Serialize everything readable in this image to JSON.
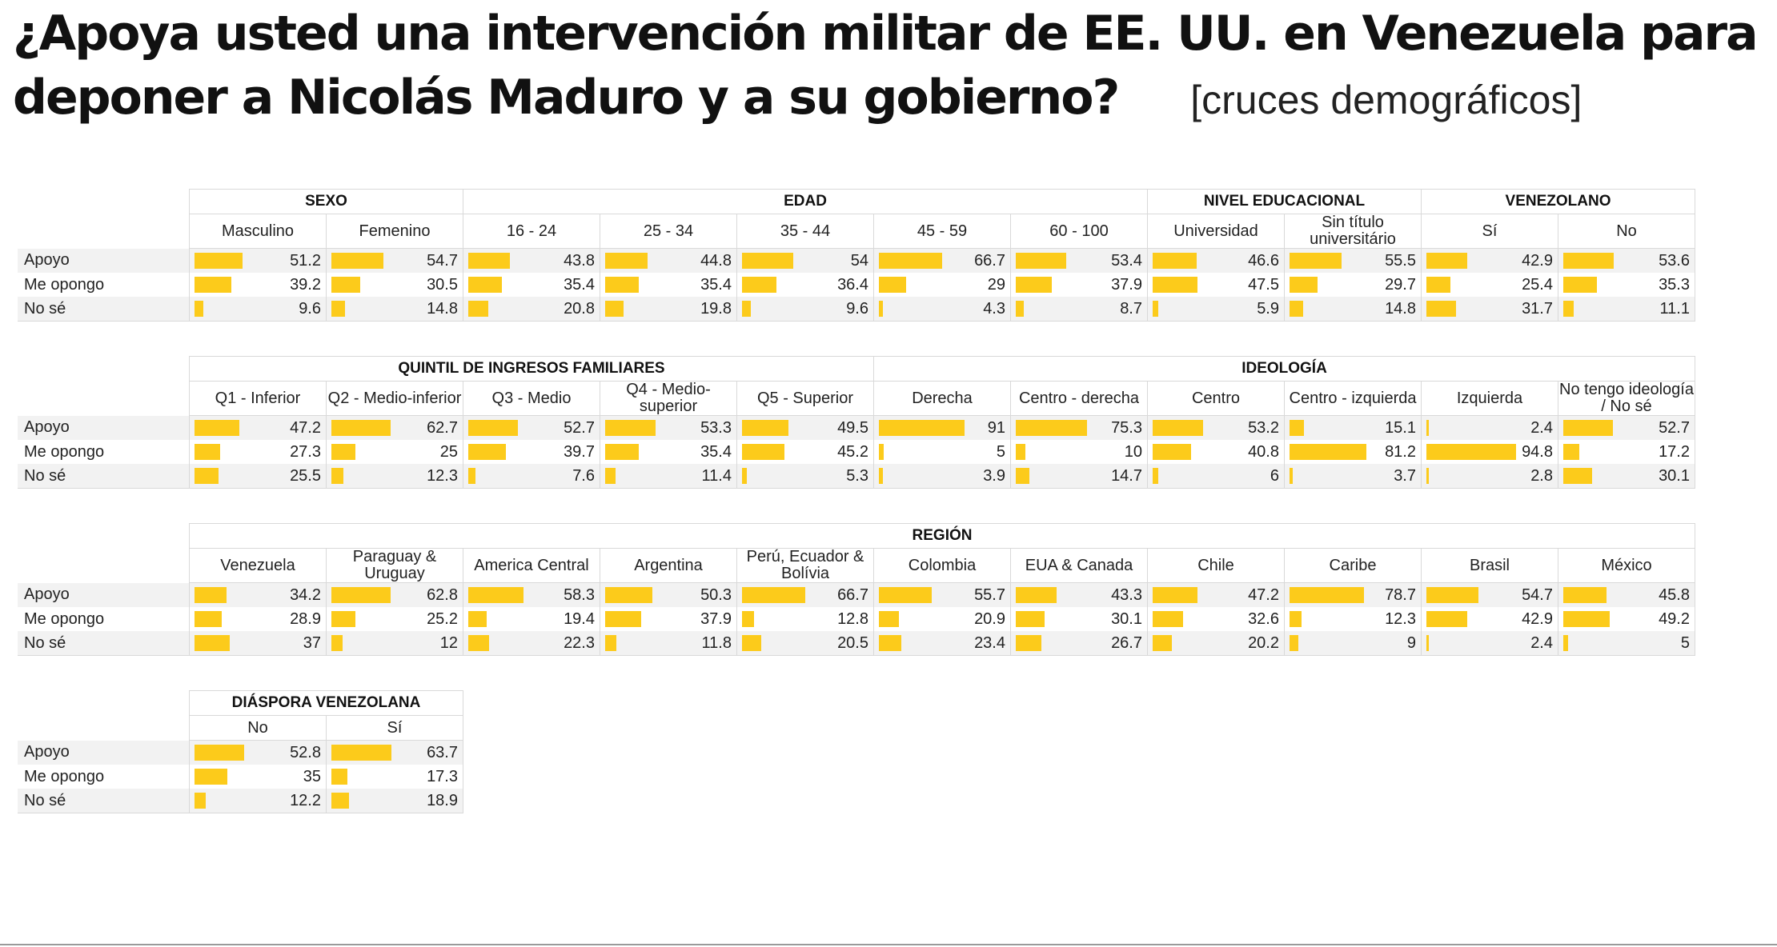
{
  "title": "¿Apoya usted una intervención militar de EE. UU. en Venezuela para deponer a Nicolás Maduro y a su gobierno?",
  "subtitle": "[cruces demográficos]",
  "colors": {
    "bar": "#fccb1b",
    "row_shade": "#f2f2f2",
    "border": "#d9d9d9"
  },
  "chart_data": {
    "type": "table",
    "scale_max": 100,
    "row_labels": [
      "Apoyo",
      "Me opongo",
      "No sé"
    ],
    "blocks": [
      {
        "groups": [
          {
            "name": "SEXO",
            "columns": [
              {
                "label": "Masculino",
                "values": [
                  51.2,
                  39.2,
                  9.6
                ]
              },
              {
                "label": "Femenino",
                "values": [
                  54.7,
                  30.5,
                  14.8
                ]
              }
            ]
          },
          {
            "name": "EDAD",
            "columns": [
              {
                "label": "16 - 24",
                "values": [
                  43.8,
                  35.4,
                  20.8
                ]
              },
              {
                "label": "25 - 34",
                "values": [
                  44.8,
                  35.4,
                  19.8
                ]
              },
              {
                "label": "35 - 44",
                "values": [
                  54,
                  36.4,
                  9.6
                ]
              },
              {
                "label": "45 - 59",
                "values": [
                  66.7,
                  29,
                  4.3
                ]
              },
              {
                "label": "60 - 100",
                "values": [
                  53.4,
                  37.9,
                  8.7
                ]
              }
            ]
          },
          {
            "name": "NIVEL EDUCACIONAL",
            "columns": [
              {
                "label": "Universidad",
                "values": [
                  46.6,
                  47.5,
                  5.9
                ]
              },
              {
                "label": "Sin título universitário",
                "values": [
                  55.5,
                  29.7,
                  14.8
                ]
              }
            ]
          },
          {
            "name": "VENEZOLANO",
            "columns": [
              {
                "label": "Sí",
                "values": [
                  42.9,
                  25.4,
                  31.7
                ]
              },
              {
                "label": "No",
                "values": [
                  53.6,
                  35.3,
                  11.1
                ]
              }
            ]
          }
        ]
      },
      {
        "groups": [
          {
            "name": "QUINTIL DE INGRESOS FAMILIARES",
            "columns": [
              {
                "label": "Q1 - Inferior",
                "values": [
                  47.2,
                  27.3,
                  25.5
                ]
              },
              {
                "label": "Q2 - Medio-inferior",
                "values": [
                  62.7,
                  25,
                  12.3
                ]
              },
              {
                "label": "Q3 - Medio",
                "values": [
                  52.7,
                  39.7,
                  7.6
                ]
              },
              {
                "label": "Q4 - Medio-superior",
                "values": [
                  53.3,
                  35.4,
                  11.4
                ]
              },
              {
                "label": "Q5 - Superior",
                "values": [
                  49.5,
                  45.2,
                  5.3
                ]
              }
            ]
          },
          {
            "name": "IDEOLOGÍA",
            "columns": [
              {
                "label": "Derecha",
                "values": [
                  91,
                  5,
                  3.9
                ]
              },
              {
                "label": "Centro - derecha",
                "values": [
                  75.3,
                  10,
                  14.7
                ]
              },
              {
                "label": "Centro",
                "values": [
                  53.2,
                  40.8,
                  6
                ]
              },
              {
                "label": "Centro - izquierda",
                "values": [
                  15.1,
                  81.2,
                  3.7
                ]
              },
              {
                "label": "Izquierda",
                "values": [
                  2.4,
                  94.8,
                  2.8
                ]
              },
              {
                "label": "No tengo ideología / No sé",
                "values": [
                  52.7,
                  17.2,
                  30.1
                ]
              }
            ]
          }
        ]
      },
      {
        "groups": [
          {
            "name": "REGIÓN",
            "columns": [
              {
                "label": "Venezuela",
                "values": [
                  34.2,
                  28.9,
                  37
                ]
              },
              {
                "label": "Paraguay & Uruguay",
                "values": [
                  62.8,
                  25.2,
                  12
                ]
              },
              {
                "label": "America Central",
                "values": [
                  58.3,
                  19.4,
                  22.3
                ]
              },
              {
                "label": "Argentina",
                "values": [
                  50.3,
                  37.9,
                  11.8
                ]
              },
              {
                "label": "Perú, Ecuador & Bolívia",
                "values": [
                  66.7,
                  12.8,
                  20.5
                ]
              },
              {
                "label": "Colombia",
                "values": [
                  55.7,
                  20.9,
                  23.4
                ]
              },
              {
                "label": "EUA & Canada",
                "values": [
                  43.3,
                  30.1,
                  26.7
                ]
              },
              {
                "label": "Chile",
                "values": [
                  47.2,
                  32.6,
                  20.2
                ]
              },
              {
                "label": "Caribe",
                "values": [
                  78.7,
                  12.3,
                  9
                ]
              },
              {
                "label": "Brasil",
                "values": [
                  54.7,
                  42.9,
                  2.4
                ]
              },
              {
                "label": "México",
                "values": [
                  45.8,
                  49.2,
                  5
                ]
              }
            ]
          }
        ]
      },
      {
        "groups": [
          {
            "name": "DIÁSPORA VENEZOLANA",
            "columns": [
              {
                "label": "No",
                "values": [
                  52.8,
                  35,
                  12.2
                ]
              },
              {
                "label": "Sí",
                "values": [
                  63.7,
                  17.3,
                  18.9
                ]
              }
            ]
          }
        ]
      }
    ]
  }
}
